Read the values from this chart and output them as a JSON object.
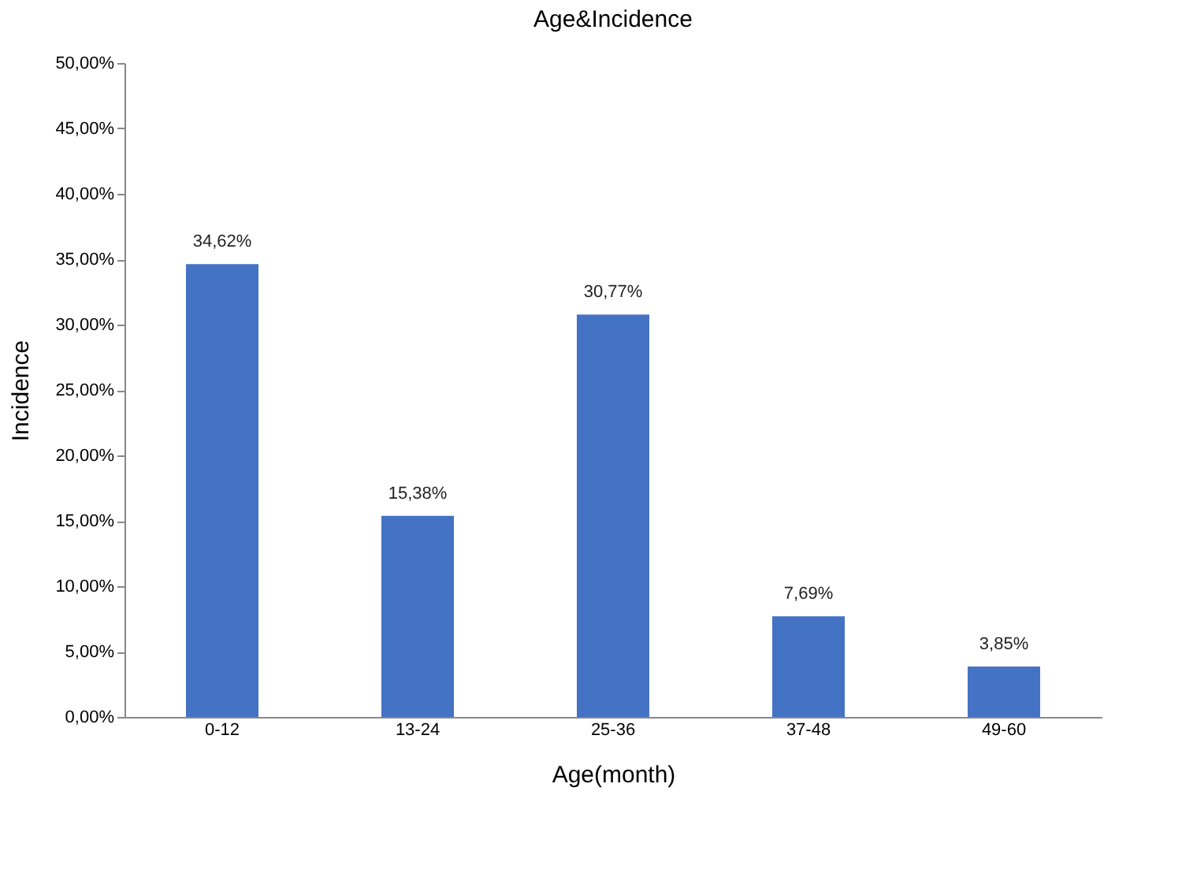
{
  "chart_data": {
    "type": "bar",
    "title": "Age&Incidence",
    "xlabel": "Age(month)",
    "ylabel": "Incidence",
    "categories": [
      "0-12",
      "13-24",
      "25-36",
      "37-48",
      "49-60"
    ],
    "values": [
      34.62,
      15.38,
      30.77,
      7.69,
      3.85
    ],
    "value_labels": [
      "34,62%",
      "15,38%",
      "30,77%",
      "7,69%",
      "3,85%"
    ],
    "color": "#4472c4",
    "ylim": [
      0,
      50
    ],
    "yticks": [
      {
        "value": 0,
        "label": "0,00%"
      },
      {
        "value": 5,
        "label": "5,00%"
      },
      {
        "value": 10,
        "label": "10,00%"
      },
      {
        "value": 15,
        "label": "15,00%"
      },
      {
        "value": 20,
        "label": "20,00%"
      },
      {
        "value": 25,
        "label": "25,00%"
      },
      {
        "value": 30,
        "label": "30,00%"
      },
      {
        "value": 35,
        "label": "35,00%"
      },
      {
        "value": 40,
        "label": "40,00%"
      },
      {
        "value": 45,
        "label": "45,00%"
      },
      {
        "value": 50,
        "label": "50,00%"
      }
    ],
    "grid": false
  }
}
